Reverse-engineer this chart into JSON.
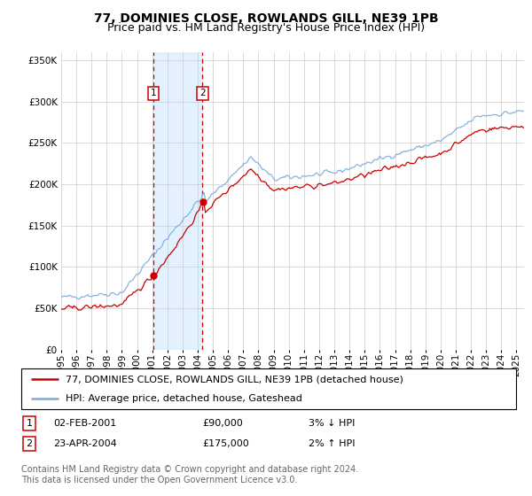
{
  "title": "77, DOMINIES CLOSE, ROWLANDS GILL, NE39 1PB",
  "subtitle": "Price paid vs. HM Land Registry's House Price Index (HPI)",
  "legend_line1": "77, DOMINIES CLOSE, ROWLANDS GILL, NE39 1PB (detached house)",
  "legend_line2": "HPI: Average price, detached house, Gateshead",
  "table_row1_num": "1",
  "table_row1_date": "02-FEB-2001",
  "table_row1_price": "£90,000",
  "table_row1_hpi": "3% ↓ HPI",
  "table_row2_num": "2",
  "table_row2_date": "23-APR-2004",
  "table_row2_price": "£175,000",
  "table_row2_hpi": "2% ↑ HPI",
  "footnote": "Contains HM Land Registry data © Crown copyright and database right 2024.\nThis data is licensed under the Open Government Licence v3.0.",
  "sale1_year": 2001.08,
  "sale1_price": 90000,
  "sale2_year": 2004.31,
  "sale2_price": 175000,
  "red_line_color": "#cc0000",
  "blue_line_color": "#7aabdb",
  "shade_color": "#ddeeff",
  "grid_color": "#cccccc",
  "background_color": "#ffffff",
  "ylim": [
    0,
    360000
  ],
  "yticks": [
    0,
    50000,
    100000,
    150000,
    200000,
    250000,
    300000,
    350000
  ],
  "ytick_labels": [
    "£0",
    "£50K",
    "£100K",
    "£150K",
    "£200K",
    "£250K",
    "£300K",
    "£350K"
  ],
  "xstart": 1995.0,
  "xend": 2025.5,
  "title_fontsize": 10,
  "subtitle_fontsize": 9,
  "tick_fontsize": 7.5,
  "legend_fontsize": 8,
  "footnote_fontsize": 7,
  "table_fontsize": 8
}
